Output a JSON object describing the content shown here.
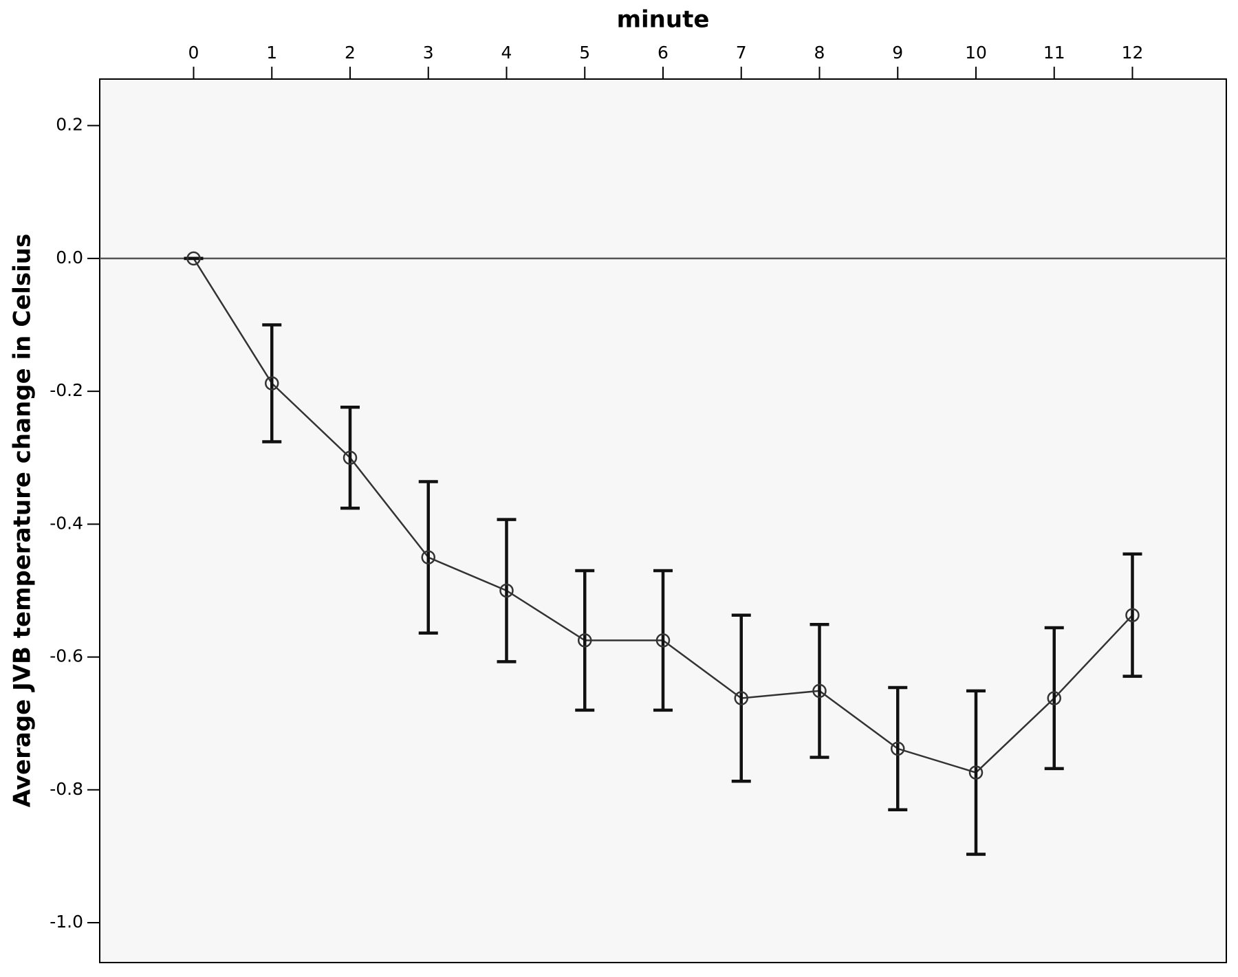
{
  "chart_data": {
    "type": "line",
    "x_label": "minute",
    "y_label": "Average JVB temperature change in Celsius",
    "x": [
      0,
      1,
      2,
      3,
      4,
      5,
      6,
      7,
      8,
      9,
      10,
      11,
      12
    ],
    "values": [
      0,
      -0.188,
      -0.3,
      -0.45,
      -0.5,
      -0.575,
      -0.575,
      -0.662,
      -0.651,
      -0.738,
      -0.774,
      -0.662,
      -0.537
    ],
    "errors": [
      0,
      0.088,
      0.076,
      0.114,
      0.107,
      0.105,
      0.105,
      0.125,
      0.1,
      0.092,
      0.123,
      0.106,
      0.092
    ],
    "color": "#333333",
    "error_color": "#111111",
    "plot_background": "#f7f7f7",
    "reference_line": 0,
    "x_axis_position": "top",
    "xlim": [
      -1.2,
      13.2
    ],
    "xticks": [
      0,
      1,
      2,
      3,
      4,
      5,
      6,
      7,
      8,
      9,
      10,
      11,
      12
    ],
    "ylim": [
      -1.06,
      0.27
    ],
    "yticks": [
      0.2,
      {
        "value": 0,
        "label": "0.0"
      },
      -0.2,
      -0.4,
      -0.6,
      -0.8,
      {
        "value": -1,
        "label": "-1.0"
      }
    ],
    "grid": false
  }
}
